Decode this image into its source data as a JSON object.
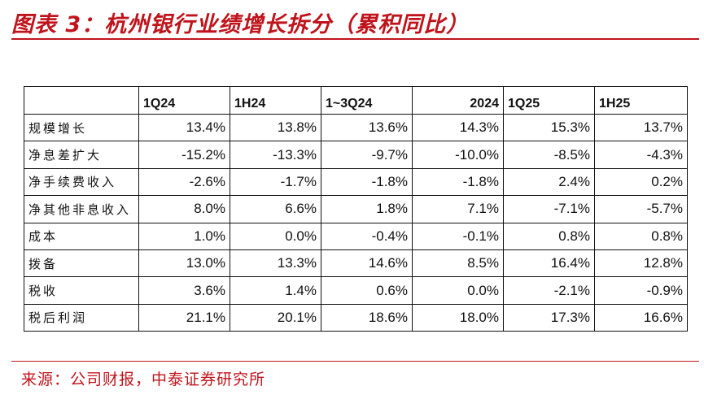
{
  "title": "图表 3：杭州银行业绩增长拆分（累积同比）",
  "header": [
    "",
    "1Q24",
    "1H24",
    "1~3Q24",
    "2024",
    "1Q25",
    "1H25"
  ],
  "rows": [
    {
      "label": "规模增长",
      "values": [
        "13.4%",
        "13.8%",
        "13.6%",
        "14.3%",
        "15.3%",
        "13.7%"
      ]
    },
    {
      "label": "净息差扩大",
      "values": [
        "-15.2%",
        "-13.3%",
        "-9.7%",
        "-10.0%",
        "-8.5%",
        "-4.3%"
      ]
    },
    {
      "label": "净手续费收入",
      "values": [
        "-2.6%",
        "-1.7%",
        "-1.8%",
        "-1.8%",
        "2.4%",
        "0.2%"
      ]
    },
    {
      "label": "净其他非息收入",
      "values": [
        "8.0%",
        "6.6%",
        "1.8%",
        "7.1%",
        "-7.1%",
        "-5.7%"
      ]
    },
    {
      "label": "成本",
      "values": [
        "1.0%",
        "0.0%",
        "-0.4%",
        "-0.1%",
        "0.8%",
        "0.8%"
      ]
    },
    {
      "label": "拨备",
      "values": [
        "13.0%",
        "13.3%",
        "14.6%",
        "8.5%",
        "16.4%",
        "12.8%"
      ]
    },
    {
      "label": "税收",
      "values": [
        "3.6%",
        "1.4%",
        "0.6%",
        "0.0%",
        "-2.1%",
        "-0.9%"
      ]
    },
    {
      "label": "税后利润",
      "values": [
        "21.1%",
        "20.1%",
        "18.6%",
        "18.0%",
        "17.3%",
        "16.6%"
      ]
    }
  ],
  "source": "来源：公司财报，中泰证券研究所",
  "colors": {
    "accent": "#c0141c",
    "marker": "#e02020",
    "border": "#111111"
  }
}
